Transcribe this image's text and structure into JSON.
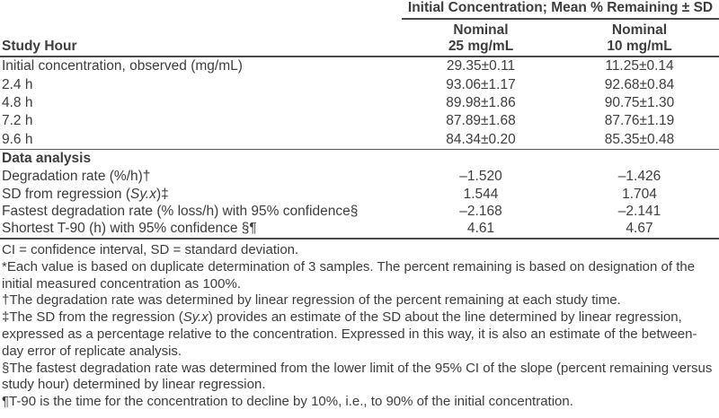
{
  "colors": {
    "text": "#3d3d3d",
    "rule": "#4a4a4a",
    "background": "#ffffff"
  },
  "table": {
    "span_header": "Initial Concentration; Mean % Remaining ± SD",
    "study_hour_header": "Study Hour",
    "col1": {
      "line1": "Nominal",
      "line2": "25 mg/mL"
    },
    "col2": {
      "line1": "Nominal",
      "line2": "10 mg/mL"
    },
    "rows": [
      {
        "label": "Initial concentration, observed (mg/mL)",
        "v25": "29.35±0.11",
        "v10": "11.25±0.14"
      },
      {
        "label": "2.4 h",
        "v25": "93.06±1.17",
        "v10": "92.68±0.84"
      },
      {
        "label": "4.8 h",
        "v25": "89.98±1.86",
        "v10": "90.75±1.30"
      },
      {
        "label": "7.2 h",
        "v25": "87.89±1.68",
        "v10": "87.76±1.19"
      },
      {
        "label": "9.6 h",
        "v25": "84.34±0.20",
        "v10": "85.35±0.48"
      }
    ],
    "section_header": "Data analysis",
    "analysis_rows": [
      {
        "label": "Degradation rate (%/h)†",
        "v25": "–1.520",
        "v10": "–1.426"
      },
      {
        "label_parts": [
          "SD from regression (",
          "Sy.x",
          ")‡"
        ],
        "v25": "1.544",
        "v10": "1.704"
      },
      {
        "label": "Fastest degradation rate (% loss/h) with 95% confidence§",
        "v25": "–2.168",
        "v10": "–2.141"
      },
      {
        "label": "Shortest T-90 (h) with 95% confidence §¶",
        "v25": "4.61",
        "v10": "4.67"
      }
    ]
  },
  "footnotes": [
    {
      "text": "CI = confidence interval, SD = standard deviation."
    },
    {
      "text": "*Each value is based on duplicate determination of 3 samples. The percent remaining is based on designation of the initial measured concentration as 100%."
    },
    {
      "text": "†The degradation rate was determined by linear regression of the percent remaining at each study time."
    },
    {
      "parts": [
        {
          "text": "‡The SD from the regression ("
        },
        {
          "text": "Sy.x",
          "italic": true
        },
        {
          "text": ") provides an estimate of the SD about the line determined by linear regression, expressed as a percentage relative to the concentration. Expressed in this way, it is also an estimate of the between-day error of replicate analysis."
        }
      ]
    },
    {
      "text": "§The fastest degradation rate was determined from the lower limit of the 95% CI of the slope (percent remaining versus study hour) determined by linear regression."
    },
    {
      "text": "¶T-90 is the time for the concentration to decline by 10%, i.e., to 90% of the initial concentration."
    }
  ]
}
